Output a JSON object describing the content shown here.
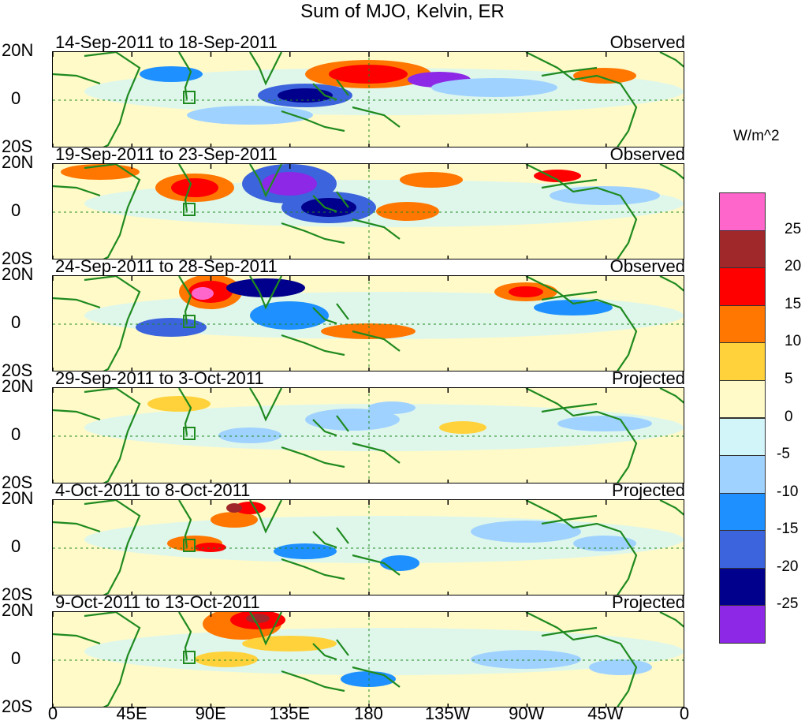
{
  "title": "Sum of MJO, Kelvin, ER",
  "panels": [
    {
      "period": "14-Sep-2011 to 18-Sep-2011",
      "type": "Observed"
    },
    {
      "period": "19-Sep-2011 to 23-Sep-2011",
      "type": "Observed"
    },
    {
      "period": "24-Sep-2011 to 28-Sep-2011",
      "type": "Observed"
    },
    {
      "period": "29-Sep-2011 to 3-Oct-2011",
      "type": "Projected"
    },
    {
      "period": "4-Oct-2011 to 8-Oct-2011",
      "type": "Projected"
    },
    {
      "period": "9-Oct-2011 to 13-Oct-2011",
      "type": "Projected"
    }
  ],
  "lat_labels": [
    "20N",
    "0",
    "20S"
  ],
  "lon_labels": [
    "0",
    "45E",
    "90E",
    "135E",
    "180",
    "135W",
    "90W",
    "45W",
    "0"
  ],
  "colorbar": {
    "unit": "W/m^2",
    "labels": [
      "25",
      "20",
      "15",
      "10",
      "5",
      "0",
      "-5",
      "-10",
      "-15",
      "-20",
      "-25"
    ],
    "colors": [
      "#ff66cc",
      "#a0282a",
      "#ff0000",
      "#ff7700",
      "#ffd23c",
      "#fffac8",
      "#d2f5fa",
      "#a0d2ff",
      "#1e90ff",
      "#3c64dc",
      "#00008c",
      "#8c28e6"
    ]
  }
}
